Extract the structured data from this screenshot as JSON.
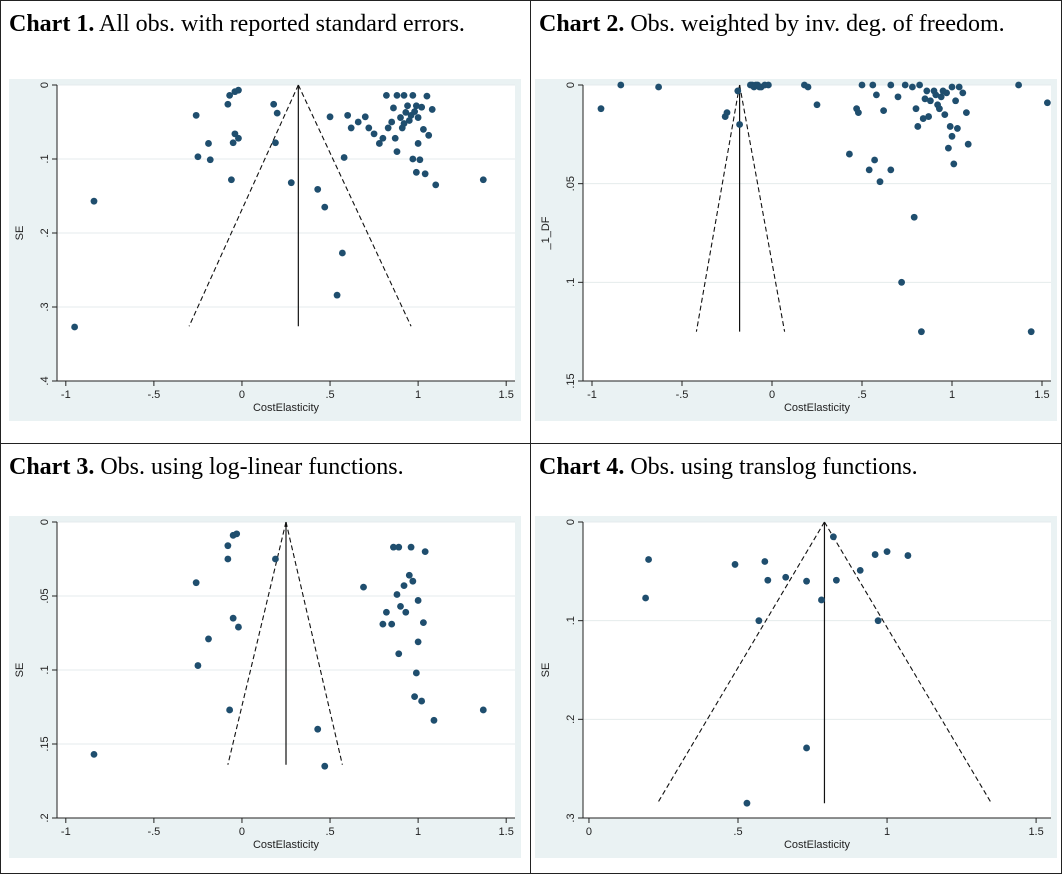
{
  "chart_data": [
    {
      "type": "scatter",
      "caption_bold": "Chart 1.",
      "caption": " All obs. with reported standard errors.",
      "xlabel": "CostElasticity",
      "ylabel": "SE",
      "xlim": [
        -1.05,
        1.55
      ],
      "ylim": [
        0,
        0.4
      ],
      "y_reversed": true,
      "xticks": [
        {
          "v": -1,
          "label": "-1"
        },
        {
          "v": -0.5,
          "label": "-.5"
        },
        {
          "v": 0,
          "label": "0"
        },
        {
          "v": 0.5,
          "label": ".5"
        },
        {
          "v": 1,
          "label": "1"
        },
        {
          "v": 1.5,
          "label": "1.5"
        }
      ],
      "yticks": [
        {
          "v": 0,
          "label": "0"
        },
        {
          "v": 0.1,
          "label": ".1"
        },
        {
          "v": 0.2,
          "label": ".2"
        },
        {
          "v": 0.3,
          "label": ".3"
        },
        {
          "v": 0.4,
          "label": ".4"
        }
      ],
      "funnel": {
        "center": 0.32,
        "base_y": 0.326,
        "left_x": -0.3,
        "right_x": 0.96
      },
      "points": [
        [
          -0.95,
          0.327
        ],
        [
          -0.84,
          0.157
        ],
        [
          -0.26,
          0.041
        ],
        [
          -0.25,
          0.097
        ],
        [
          -0.19,
          0.079
        ],
        [
          -0.18,
          0.101
        ],
        [
          -0.08,
          0.026
        ],
        [
          -0.07,
          0.014
        ],
        [
          -0.06,
          0.128
        ],
        [
          -0.05,
          0.078
        ],
        [
          -0.04,
          0.009
        ],
        [
          -0.04,
          0.066
        ],
        [
          -0.02,
          0.007
        ],
        [
          -0.02,
          0.072
        ],
        [
          0.18,
          0.026
        ],
        [
          0.19,
          0.078
        ],
        [
          0.2,
          0.038
        ],
        [
          0.28,
          0.132
        ],
        [
          0.43,
          0.141
        ],
        [
          0.47,
          0.165
        ],
        [
          0.5,
          0.043
        ],
        [
          0.54,
          0.284
        ],
        [
          0.57,
          0.227
        ],
        [
          0.58,
          0.098
        ],
        [
          0.6,
          0.041
        ],
        [
          0.62,
          0.058
        ],
        [
          0.66,
          0.05
        ],
        [
          0.7,
          0.043
        ],
        [
          0.72,
          0.058
        ],
        [
          0.75,
          0.066
        ],
        [
          0.78,
          0.079
        ],
        [
          0.8,
          0.072
        ],
        [
          0.82,
          0.014
        ],
        [
          0.83,
          0.058
        ],
        [
          0.85,
          0.05
        ],
        [
          0.86,
          0.031
        ],
        [
          0.87,
          0.072
        ],
        [
          0.88,
          0.09
        ],
        [
          0.88,
          0.014
        ],
        [
          0.9,
          0.044
        ],
        [
          0.91,
          0.058
        ],
        [
          0.92,
          0.014
        ],
        [
          0.92,
          0.052
        ],
        [
          0.93,
          0.037
        ],
        [
          0.94,
          0.028
        ],
        [
          0.95,
          0.048
        ],
        [
          0.96,
          0.041
        ],
        [
          0.97,
          0.014
        ],
        [
          0.97,
          0.1
        ],
        [
          0.98,
          0.036
        ],
        [
          0.99,
          0.028
        ],
        [
          0.99,
          0.118
        ],
        [
          1.0,
          0.044
        ],
        [
          1.0,
          0.079
        ],
        [
          1.01,
          0.101
        ],
        [
          1.02,
          0.03
        ],
        [
          1.03,
          0.06
        ],
        [
          1.04,
          0.12
        ],
        [
          1.05,
          0.015
        ],
        [
          1.06,
          0.068
        ],
        [
          1.08,
          0.033
        ],
        [
          1.1,
          0.135
        ],
        [
          1.37,
          0.128
        ]
      ]
    },
    {
      "type": "scatter",
      "caption_bold": "Chart 2.",
      "caption": " Obs. weighted by inv. deg. of freedom.",
      "xlabel": "CostElasticity",
      "ylabel": "_1_DF",
      "xlim": [
        -1.05,
        1.55
      ],
      "ylim": [
        0,
        0.15
      ],
      "y_reversed": true,
      "xticks": [
        {
          "v": -1,
          "label": "-1"
        },
        {
          "v": -0.5,
          "label": "-.5"
        },
        {
          "v": 0,
          "label": "0"
        },
        {
          "v": 0.5,
          "label": ".5"
        },
        {
          "v": 1,
          "label": "1"
        },
        {
          "v": 1.5,
          "label": "1.5"
        }
      ],
      "yticks": [
        {
          "v": 0,
          "label": "0"
        },
        {
          "v": 0.05,
          "label": ".05"
        },
        {
          "v": 0.1,
          "label": ".1"
        },
        {
          "v": 0.15,
          "label": ".15"
        }
      ],
      "funnel": {
        "center": -0.18,
        "base_y": 0.125,
        "left_x": -0.42,
        "right_x": 0.07
      },
      "points": [
        [
          -0.95,
          0.012
        ],
        [
          -0.84,
          0.0
        ],
        [
          -0.63,
          0.001
        ],
        [
          -0.26,
          0.016
        ],
        [
          -0.25,
          0.014
        ],
        [
          -0.19,
          0.003
        ],
        [
          -0.18,
          0.02
        ],
        [
          -0.12,
          0.0
        ],
        [
          -0.11,
          0.0
        ],
        [
          -0.1,
          0.001
        ],
        [
          -0.09,
          0.0
        ],
        [
          -0.08,
          0.0
        ],
        [
          -0.07,
          0.001
        ],
        [
          -0.06,
          0.001
        ],
        [
          -0.04,
          0.0
        ],
        [
          -0.02,
          0.0
        ],
        [
          0.18,
          0.0
        ],
        [
          0.2,
          0.001
        ],
        [
          0.25,
          0.01
        ],
        [
          0.43,
          0.035
        ],
        [
          0.47,
          0.012
        ],
        [
          0.48,
          0.014
        ],
        [
          0.5,
          0.0
        ],
        [
          0.54,
          0.043
        ],
        [
          0.56,
          0.0
        ],
        [
          0.57,
          0.038
        ],
        [
          0.58,
          0.005
        ],
        [
          0.6,
          0.049
        ],
        [
          0.62,
          0.013
        ],
        [
          0.66,
          0.043
        ],
        [
          0.66,
          0.0
        ],
        [
          0.7,
          0.006
        ],
        [
          0.72,
          0.1
        ],
        [
          0.74,
          0.0
        ],
        [
          0.78,
          0.001
        ],
        [
          0.79,
          0.067
        ],
        [
          0.8,
          0.012
        ],
        [
          0.81,
          0.021
        ],
        [
          0.82,
          0.0
        ],
        [
          0.83,
          0.125
        ],
        [
          0.84,
          0.017
        ],
        [
          0.85,
          0.007
        ],
        [
          0.86,
          0.003
        ],
        [
          0.87,
          0.016
        ],
        [
          0.88,
          0.008
        ],
        [
          0.9,
          0.003
        ],
        [
          0.91,
          0.005
        ],
        [
          0.92,
          0.01
        ],
        [
          0.93,
          0.012
        ],
        [
          0.94,
          0.006
        ],
        [
          0.95,
          0.003
        ],
        [
          0.96,
          0.015
        ],
        [
          0.97,
          0.004
        ],
        [
          0.98,
          0.032
        ],
        [
          0.99,
          0.021
        ],
        [
          1.0,
          0.001
        ],
        [
          1.0,
          0.026
        ],
        [
          1.01,
          0.04
        ],
        [
          1.02,
          0.008
        ],
        [
          1.03,
          0.022
        ],
        [
          1.04,
          0.001
        ],
        [
          1.06,
          0.004
        ],
        [
          1.08,
          0.014
        ],
        [
          1.09,
          0.03
        ],
        [
          1.37,
          0.0
        ],
        [
          1.44,
          0.125
        ],
        [
          1.53,
          0.009
        ]
      ]
    },
    {
      "type": "scatter",
      "caption_bold": "Chart 3.",
      "caption": " Obs. using log-linear functions.",
      "xlabel": "CostElasticity",
      "ylabel": "SE",
      "xlim": [
        -1.05,
        1.55
      ],
      "ylim": [
        0,
        0.2
      ],
      "y_reversed": true,
      "xticks": [
        {
          "v": -1,
          "label": "-1"
        },
        {
          "v": -0.5,
          "label": "-.5"
        },
        {
          "v": 0,
          "label": "0"
        },
        {
          "v": 0.5,
          "label": ".5"
        },
        {
          "v": 1,
          "label": "1"
        },
        {
          "v": 1.5,
          "label": "1.5"
        }
      ],
      "yticks": [
        {
          "v": 0,
          "label": "0"
        },
        {
          "v": 0.05,
          "label": ".05"
        },
        {
          "v": 0.1,
          "label": ".1"
        },
        {
          "v": 0.15,
          "label": ".15"
        },
        {
          "v": 0.2,
          "label": ".2"
        }
      ],
      "funnel": {
        "center": 0.25,
        "base_y": 0.164,
        "left_x": -0.08,
        "right_x": 0.57
      },
      "points": [
        [
          -0.84,
          0.157
        ],
        [
          -0.26,
          0.041
        ],
        [
          -0.25,
          0.097
        ],
        [
          -0.19,
          0.079
        ],
        [
          -0.08,
          0.025
        ],
        [
          -0.08,
          0.016
        ],
        [
          -0.07,
          0.127
        ],
        [
          -0.05,
          0.009
        ],
        [
          -0.05,
          0.065
        ],
        [
          -0.03,
          0.008
        ],
        [
          -0.02,
          0.071
        ],
        [
          0.19,
          0.025
        ],
        [
          0.43,
          0.14
        ],
        [
          0.47,
          0.165
        ],
        [
          0.69,
          0.044
        ],
        [
          0.8,
          0.069
        ],
        [
          0.82,
          0.061
        ],
        [
          0.85,
          0.069
        ],
        [
          0.86,
          0.017
        ],
        [
          0.88,
          0.049
        ],
        [
          0.89,
          0.017
        ],
        [
          0.89,
          0.089
        ],
        [
          0.9,
          0.057
        ],
        [
          0.92,
          0.043
        ],
        [
          0.93,
          0.061
        ],
        [
          0.95,
          0.036
        ],
        [
          0.96,
          0.017
        ],
        [
          0.97,
          0.04
        ],
        [
          0.98,
          0.118
        ],
        [
          0.99,
          0.102
        ],
        [
          1.0,
          0.081
        ],
        [
          1.0,
          0.053
        ],
        [
          1.02,
          0.121
        ],
        [
          1.03,
          0.068
        ],
        [
          1.04,
          0.02
        ],
        [
          1.09,
          0.134
        ],
        [
          1.37,
          0.127
        ]
      ]
    },
    {
      "type": "scatter",
      "caption_bold": "Chart 4.",
      "caption": " Obs. using translog functions.",
      "xlabel": "CostElasticity",
      "ylabel": "SE",
      "xlim": [
        -0.02,
        1.55
      ],
      "ylim": [
        0,
        0.3
      ],
      "y_reversed": true,
      "xticks": [
        {
          "v": 0,
          "label": "0"
        },
        {
          "v": 0.5,
          "label": ".5"
        },
        {
          "v": 1,
          "label": "1"
        },
        {
          "v": 1.5,
          "label": "1.5"
        }
      ],
      "yticks": [
        {
          "v": 0,
          "label": "0"
        },
        {
          "v": 0.1,
          "label": ".1"
        },
        {
          "v": 0.2,
          "label": ".2"
        },
        {
          "v": 0.3,
          "label": ".3"
        }
      ],
      "funnel": {
        "center": 0.79,
        "base_y": 0.285,
        "left_x": 0.23,
        "right_x": 1.35
      },
      "points": [
        [
          0.19,
          0.077
        ],
        [
          0.2,
          0.038
        ],
        [
          0.49,
          0.043
        ],
        [
          0.53,
          0.285
        ],
        [
          0.57,
          0.1
        ],
        [
          0.59,
          0.04
        ],
        [
          0.6,
          0.059
        ],
        [
          0.66,
          0.056
        ],
        [
          0.73,
          0.229
        ],
        [
          0.73,
          0.06
        ],
        [
          0.78,
          0.079
        ],
        [
          0.82,
          0.015
        ],
        [
          0.83,
          0.059
        ],
        [
          0.91,
          0.049
        ],
        [
          0.96,
          0.033
        ],
        [
          0.97,
          0.1
        ],
        [
          1.0,
          0.03
        ],
        [
          1.07,
          0.034
        ]
      ]
    }
  ]
}
